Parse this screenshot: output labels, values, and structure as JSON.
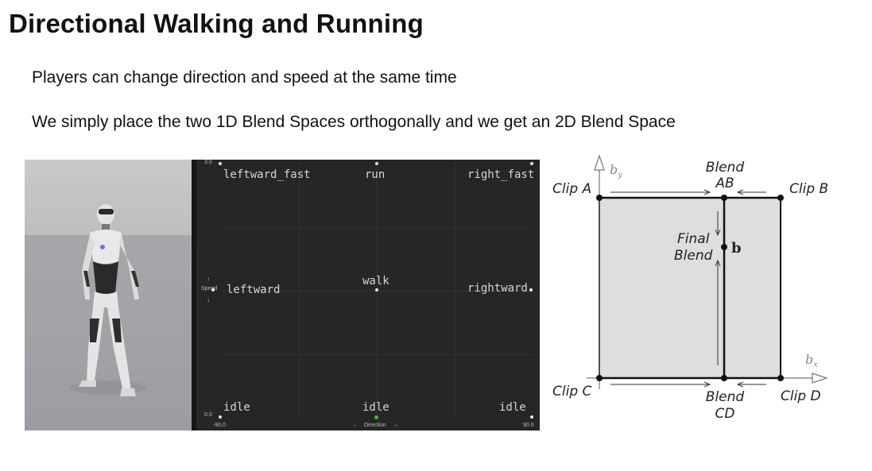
{
  "slide": {
    "title": "Directional Walking and Running",
    "bullets": [
      "Players can change direction and speed at the same time",
      "We simply place the two 1D Blend Spaces orthogonally and we get an 2D Blend Space"
    ]
  },
  "blend_space": {
    "samples": {
      "leftward_fast": "leftward_fast",
      "run": "run",
      "right_fast": "right_fast",
      "leftward": "leftward",
      "walk": "walk",
      "rightward": "rightward",
      "idle_left": "idle",
      "idle_center": "idle",
      "idle_right": "idle"
    },
    "y_axis": {
      "label": "Speed",
      "max": "3.0",
      "min": "0.0"
    },
    "x_axis": {
      "label": "Direction",
      "min": "-90.0",
      "max": "90.0"
    }
  },
  "diagram": {
    "clip_a": "Clip A",
    "clip_b": "Clip B",
    "clip_c": "Clip C",
    "clip_d": "Clip D",
    "blend_ab_1": "Blend",
    "blend_ab_2": "AB",
    "blend_cd_1": "Blend",
    "blend_cd_2": "CD",
    "final_1": "Final",
    "final_2": "Blend",
    "point_b": "b",
    "axis_y": "b",
    "axis_y_sub": "y",
    "axis_x": "b",
    "axis_x_sub": "x"
  }
}
